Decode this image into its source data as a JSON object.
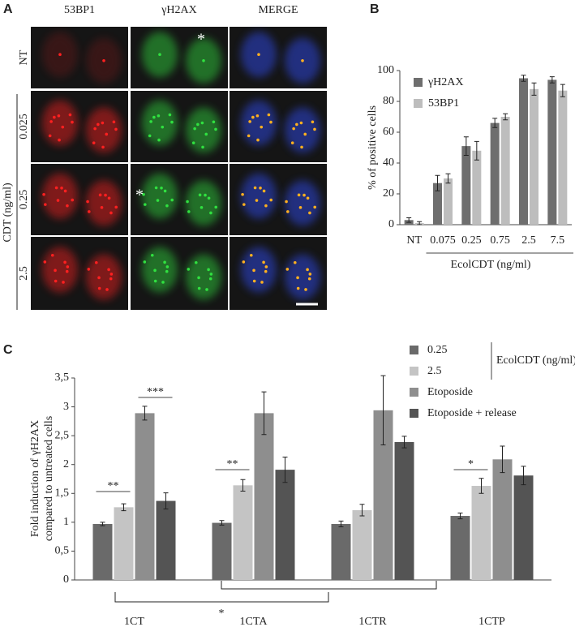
{
  "panel_a": {
    "panel_label": "A",
    "columns": [
      "53BP1",
      "γH2AX",
      "MERGE"
    ],
    "rows": [
      "NT",
      "0.025",
      "0.25",
      "2.5"
    ],
    "row_group_label": "CDT (ng/ml)",
    "asterisks": [
      "*",
      "*"
    ]
  },
  "chart_data": [
    {
      "type": "bar",
      "panel_label": "B",
      "ylabel": "% of positive cells",
      "xlabel": "EcolCDT (ng/ml)",
      "categories": [
        "NT",
        "0.075",
        "0.25",
        "0.75",
        "2.5",
        "7.5"
      ],
      "series": [
        {
          "name": "γH2AX",
          "color": "#6e6e6e",
          "values": [
            3,
            27,
            51,
            66,
            95,
            94
          ],
          "errors": [
            1.5,
            5,
            6,
            3,
            2,
            2
          ]
        },
        {
          "name": "53BP1",
          "color": "#bdbdbd",
          "values": [
            1,
            30,
            48,
            70,
            88,
            87
          ],
          "errors": [
            1,
            3,
            6,
            2,
            4,
            4
          ]
        }
      ],
      "ylim": [
        0,
        100
      ],
      "yticks": [
        0,
        20,
        40,
        60,
        80,
        100
      ]
    },
    {
      "type": "bar",
      "panel_label": "C",
      "ylabel": [
        "Fold induction of γH2AX",
        "compared to untreated cells"
      ],
      "legend_title": "EcolCDT (ng/ml)",
      "categories": [
        "1CT",
        "1CTA",
        "1CTR",
        "1CTP"
      ],
      "series": [
        {
          "name": "0.25",
          "color": "#6a6a6a",
          "values": [
            0.97,
            0.99,
            0.97,
            1.11
          ],
          "errors": [
            0.03,
            0.04,
            0.05,
            0.05
          ]
        },
        {
          "name": "2.5",
          "color": "#c4c4c4",
          "values": [
            1.26,
            1.64,
            1.21,
            1.63
          ],
          "errors": [
            0.06,
            0.1,
            0.1,
            0.13
          ]
        },
        {
          "name": "Etoposide",
          "color": "#8e8e8e",
          "values": [
            2.89,
            2.89,
            2.94,
            2.09
          ],
          "errors": [
            0.12,
            0.37,
            0.6,
            0.23
          ]
        },
        {
          "name": "Etoposide + release",
          "color": "#545454",
          "values": [
            1.37,
            1.91,
            2.39,
            1.81
          ],
          "errors": [
            0.14,
            0.22,
            0.1,
            0.16
          ]
        }
      ],
      "ylim": [
        0,
        3.5
      ],
      "yticks": [
        0,
        {
          "value": 0.5,
          "label": "0,5"
        },
        1,
        {
          "value": 1.5,
          "label": "1,5"
        },
        2,
        {
          "value": 2.5,
          "label": "2,5"
        },
        3,
        {
          "value": 3.5,
          "label": "3,5"
        }
      ],
      "annotations": [
        "**",
        "***",
        "**",
        "*",
        "*"
      ]
    }
  ]
}
